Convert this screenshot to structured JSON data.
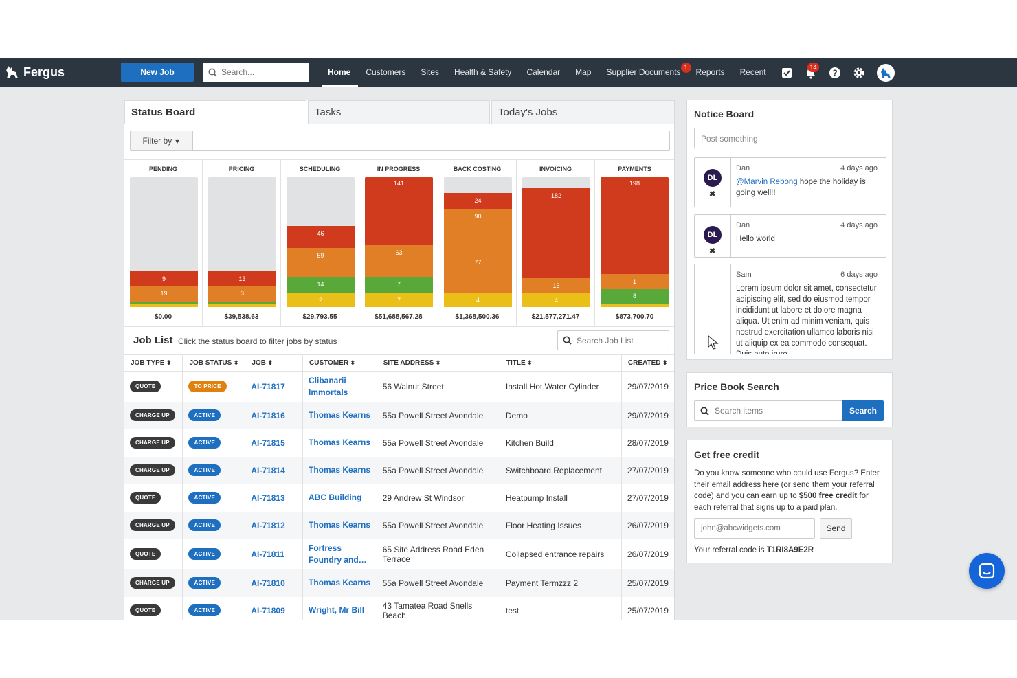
{
  "topbar": {
    "brand": "Fergus",
    "new_job_label": "New Job",
    "search_placeholder": "Search...",
    "nav": [
      {
        "label": "Home",
        "active": true
      },
      {
        "label": "Customers"
      },
      {
        "label": "Sites"
      },
      {
        "label": "Health & Safety"
      },
      {
        "label": "Calendar"
      },
      {
        "label": "Map"
      },
      {
        "label": "Supplier Documents",
        "badge": "1"
      },
      {
        "label": "Reports"
      },
      {
        "label": "Recent"
      }
    ],
    "notifications_badge": "14",
    "icons": [
      "checkbox-icon",
      "bell-icon",
      "help-icon",
      "settings-icon",
      "user-avatar-icon"
    ]
  },
  "tabs": [
    {
      "label": "Status Board",
      "active": true
    },
    {
      "label": "Tasks"
    },
    {
      "label": "Today's Jobs"
    }
  ],
  "filter_label": "Filter by",
  "colors": {
    "red": "#d03a1d",
    "orange": "#e07f25",
    "green": "#59a83a",
    "yellow": "#eac018",
    "empty": "#e1e2e3",
    "brand_blue": "#1e6fc0",
    "topbar": "#2c3641"
  },
  "status_board": [
    {
      "name": "PENDING",
      "total": "$0.00",
      "segments": [
        {
          "color": "red",
          "value": "9",
          "frac": 0.11
        },
        {
          "color": "orange",
          "value": "19",
          "frac": 0.12
        },
        {
          "color": "green",
          "value": "",
          "frac": 0.02
        },
        {
          "color": "yellow",
          "value": "",
          "frac": 0.02
        }
      ]
    },
    {
      "name": "PRICING",
      "total": "$39,538.63",
      "segments": [
        {
          "color": "red",
          "value": "13",
          "frac": 0.11
        },
        {
          "color": "orange",
          "value": "3",
          "frac": 0.12
        },
        {
          "color": "green",
          "value": "",
          "frac": 0.02
        },
        {
          "color": "yellow",
          "value": "",
          "frac": 0.02
        }
      ]
    },
    {
      "name": "SCHEDULING",
      "total": "$29,793.55",
      "segments": [
        {
          "color": "red",
          "value": "46",
          "frac": 0.17
        },
        {
          "color": "orange",
          "value": "59",
          "frac": 0.22
        },
        {
          "color": "green",
          "value": "14",
          "frac": 0.12
        },
        {
          "color": "yellow",
          "value": "2",
          "frac": 0.11
        }
      ]
    },
    {
      "name": "IN PROGRESS",
      "total": "$51,688,567.28",
      "segments": [
        {
          "color": "red",
          "value": "141",
          "frac": 0.53
        },
        {
          "color": "orange",
          "value": "63",
          "frac": 0.24
        },
        {
          "color": "green",
          "value": "7",
          "frac": 0.12
        },
        {
          "color": "yellow",
          "value": "7",
          "frac": 0.11
        }
      ]
    },
    {
      "name": "BACK COSTING",
      "total": "$1,368,500.36",
      "segments": [
        {
          "color": "red",
          "value": "24",
          "frac": 0.12
        },
        {
          "color": "orange",
          "value": "90",
          "frac": 0.35
        },
        {
          "color": "orange",
          "value": "77",
          "frac": 0.29
        },
        {
          "color": "yellow",
          "value": "4",
          "frac": 0.11
        }
      ]
    },
    {
      "name": "INVOICING",
      "total": "$21,577,271.47",
      "segments": [
        {
          "color": "red",
          "value": "182",
          "frac": 0.69
        },
        {
          "color": "orange",
          "value": "15",
          "frac": 0.11
        },
        {
          "color": "yellow",
          "value": "4",
          "frac": 0.11
        }
      ]
    },
    {
      "name": "PAYMENTS",
      "total": "$873,700.70",
      "segments": [
        {
          "color": "red",
          "value": "198",
          "frac": 0.75
        },
        {
          "color": "orange",
          "value": "1",
          "frac": 0.11
        },
        {
          "color": "green",
          "value": "8",
          "frac": 0.12
        },
        {
          "color": "yellow",
          "value": "",
          "frac": 0.02
        }
      ]
    }
  ],
  "job_list": {
    "title": "Job List",
    "subtitle": "Click the status board to filter jobs by status",
    "search_placeholder": "Search Job List",
    "columns": [
      "JOB TYPE",
      "JOB STATUS",
      "JOB",
      "CUSTOMER",
      "SITE ADDRESS",
      "TITLE",
      "CREATED"
    ],
    "rows": [
      {
        "type": "QUOTE",
        "status": "TO PRICE",
        "job": "AI-71817",
        "customer": "Clibanarii Immortals",
        "address": "56 Walnut Street",
        "title": "Install Hot Water Cylinder",
        "created": "29/07/2019"
      },
      {
        "type": "CHARGE UP",
        "status": "ACTIVE",
        "job": "AI-71816",
        "customer": "Thomas Kearns",
        "address": "55a Powell Street Avondale",
        "title": "Demo",
        "created": "29/07/2019"
      },
      {
        "type": "CHARGE UP",
        "status": "ACTIVE",
        "job": "AI-71815",
        "customer": "Thomas Kearns",
        "address": "55a Powell Street Avondale",
        "title": "Kitchen Build",
        "created": "28/07/2019"
      },
      {
        "type": "CHARGE UP",
        "status": "ACTIVE",
        "job": "AI-71814",
        "customer": "Thomas Kearns",
        "address": "55a Powell Street Avondale",
        "title": "Switchboard Replacement",
        "created": "27/07/2019"
      },
      {
        "type": "QUOTE",
        "status": "ACTIVE",
        "job": "AI-71813",
        "customer": "ABC Building",
        "address": "29 Andrew St Windsor",
        "title": "Heatpump Install",
        "created": "27/07/2019"
      },
      {
        "type": "CHARGE UP",
        "status": "ACTIVE",
        "job": "AI-71812",
        "customer": "Thomas Kearns",
        "address": "55a Powell Street Avondale",
        "title": "Floor Heating Issues",
        "created": "26/07/2019"
      },
      {
        "type": "QUOTE",
        "status": "ACTIVE",
        "job": "AI-71811",
        "customer": "Fortress Foundry and…",
        "address": "65 Site Address Road Eden Terrace",
        "title": "Collapsed entrance repairs",
        "created": "26/07/2019"
      },
      {
        "type": "CHARGE UP",
        "status": "ACTIVE",
        "job": "AI-71810",
        "customer": "Thomas Kearns",
        "address": "55a Powell Street Avondale",
        "title": "Payment Termzzz 2",
        "created": "25/07/2019"
      },
      {
        "type": "QUOTE",
        "status": "ACTIVE",
        "job": "AI-71809",
        "customer": "Wright, Mr Bill",
        "address": "43 Tamatea Road Snells Beach",
        "title": "test",
        "created": "25/07/2019"
      }
    ]
  },
  "notice_board": {
    "title": "Notice Board",
    "post_placeholder": "Post something",
    "notes": [
      {
        "initials": "DL",
        "author": "Dan",
        "time": "4 days ago",
        "mention": "@Marvin Rebong",
        "text": " hope the holiday is going well!!"
      },
      {
        "initials": "DL",
        "author": "Dan",
        "time": "4 days ago",
        "mention": "",
        "text": "Hello world"
      },
      {
        "initials": "",
        "author": "Sam",
        "time": "6 days ago",
        "mention": "",
        "text": "Lorem ipsum dolor sit amet, consectetur adipiscing elit, sed do eiusmod tempor incididunt ut labore et dolore magna aliqua. Ut enim ad minim veniam, quis nostrud exercitation ullamco laboris nisi ut aliquip ex ea commodo consequat. Duis aute irure"
      }
    ]
  },
  "price_book": {
    "title": "Price Book Search",
    "placeholder": "Search items",
    "button": "Search"
  },
  "credit": {
    "title": "Get free credit",
    "text_before": "Do you know someone who could use Fergus? Enter their email address here (or send them your referral code) and you can earn up to ",
    "text_bold": "$500 free credit",
    "text_after": " for each referral that signs up to a paid plan.",
    "email_placeholder": "john@abcwidgets.com",
    "send_label": "Send",
    "ref_prefix": "Your referral code is ",
    "ref_code": "T1RI8A9E2R"
  }
}
